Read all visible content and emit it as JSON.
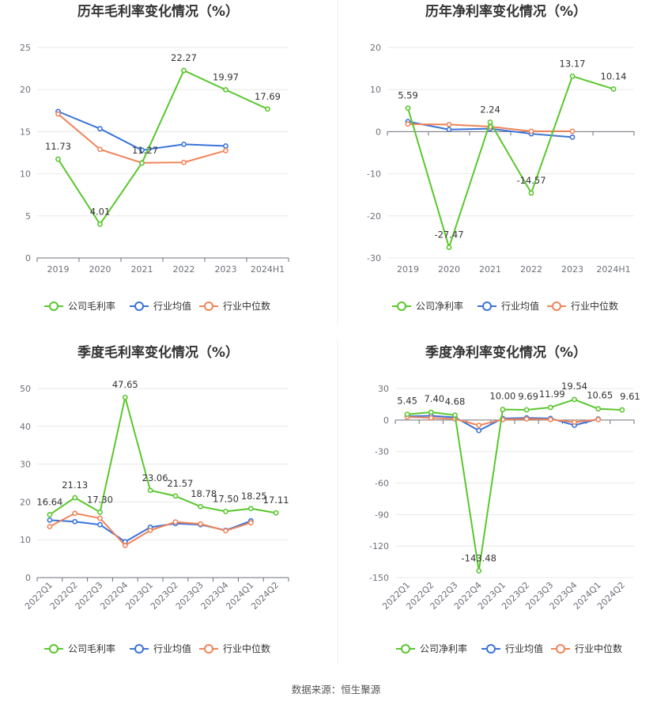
{
  "source_label": "数据来源：恒生聚源",
  "legend_industry_avg": "行业均值",
  "legend_industry_median": "行业中位数",
  "colors": {
    "company": "#5ac72d",
    "industry_avg": "#3b73d9",
    "industry_median": "#f0845a"
  },
  "chart_data": [
    {
      "type": "line",
      "title": "历年毛利率变化情况（%）",
      "categories": [
        "2019",
        "2020",
        "2021",
        "2022",
        "2023",
        "2024H1"
      ],
      "ylim": [
        0,
        25
      ],
      "yticks": [
        0,
        5,
        10,
        15,
        20,
        25
      ],
      "rotate_x": false,
      "series": [
        {
          "name": "公司毛利率",
          "key": "company",
          "values": [
            11.73,
            4.01,
            11.27,
            22.27,
            19.97,
            17.69
          ],
          "labels": [
            "11.73",
            "4.01",
            "11.27",
            "22.27",
            "19.97",
            "17.69"
          ]
        },
        {
          "name": "行业均值",
          "key": "industry_avg",
          "values": [
            17.4,
            15.35,
            12.8,
            13.5,
            13.3,
            null
          ]
        },
        {
          "name": "行业中位数",
          "key": "industry_median",
          "values": [
            17.1,
            12.9,
            11.3,
            11.35,
            12.75,
            null
          ]
        }
      ]
    },
    {
      "type": "line",
      "title": "历年净利率变化情况（%）",
      "categories": [
        "2019",
        "2020",
        "2021",
        "2022",
        "2023",
        "2024H1"
      ],
      "ylim": [
        -30,
        20
      ],
      "yticks": [
        -30,
        -20,
        -10,
        0,
        10,
        20
      ],
      "rotate_x": false,
      "series": [
        {
          "name": "公司净利率",
          "key": "company",
          "values": [
            5.59,
            -27.47,
            2.24,
            -14.57,
            13.17,
            10.14
          ],
          "labels": [
            "5.59",
            "-27.47",
            "2.24",
            "-14.57",
            "13.17",
            "10.14"
          ]
        },
        {
          "name": "行业均值",
          "key": "industry_avg",
          "values": [
            2.4,
            0.5,
            0.7,
            -0.5,
            -1.3,
            null
          ]
        },
        {
          "name": "行业中位数",
          "key": "industry_median",
          "values": [
            1.8,
            1.7,
            1.2,
            0.1,
            0.1,
            null
          ]
        }
      ]
    },
    {
      "type": "line",
      "title": "季度毛利率变化情况（%）",
      "categories": [
        "2022Q1",
        "2022Q2",
        "2022Q3",
        "2022Q4",
        "2023Q1",
        "2023Q2",
        "2023Q3",
        "2023Q4",
        "2024Q1",
        "2024Q2"
      ],
      "ylim": [
        0,
        50
      ],
      "yticks": [
        0,
        10,
        20,
        30,
        40,
        50
      ],
      "rotate_x": true,
      "series": [
        {
          "name": "公司毛利率",
          "key": "company",
          "values": [
            16.64,
            21.13,
            17.3,
            47.65,
            23.06,
            21.57,
            18.78,
            17.5,
            18.25,
            17.11
          ],
          "labels": [
            "16.64",
            "21.13",
            "17.30",
            "47.65",
            "23.06",
            "21.57",
            "18.78",
            "17.50",
            "18.25",
            "17.11"
          ]
        },
        {
          "name": "行业均值",
          "key": "industry_avg",
          "values": [
            15.2,
            14.8,
            14.0,
            9.5,
            13.3,
            14.3,
            14.0,
            12.5,
            15.0,
            null
          ]
        },
        {
          "name": "行业中位数",
          "key": "industry_median",
          "values": [
            13.5,
            17.0,
            15.7,
            8.5,
            12.5,
            14.7,
            14.2,
            12.4,
            14.5,
            null
          ]
        }
      ]
    },
    {
      "type": "line",
      "title": "季度净利率变化情况（%）",
      "categories": [
        "2022Q1",
        "2022Q2",
        "2022Q3",
        "2022Q4",
        "2023Q1",
        "2023Q2",
        "2023Q3",
        "2023Q4",
        "2024Q1",
        "2024Q2"
      ],
      "ylim": [
        -150,
        30
      ],
      "yticks": [
        -150,
        -120,
        -90,
        -60,
        -30,
        0,
        30
      ],
      "rotate_x": true,
      "series": [
        {
          "name": "公司净利率",
          "key": "company",
          "values": [
            5.45,
            7.4,
            4.68,
            -143.48,
            10.0,
            9.69,
            11.99,
            19.54,
            10.65,
            9.61
          ],
          "labels": [
            "5.45",
            "7.40",
            "4.68",
            "-143.48",
            "10.00",
            "9.69",
            "11.99",
            "19.54",
            "10.65",
            "9.61"
          ]
        },
        {
          "name": "行业均值",
          "key": "industry_avg",
          "values": [
            3.5,
            4.0,
            2.5,
            -10.0,
            1.5,
            2.0,
            1.5,
            -5.0,
            1.0,
            null
          ]
        },
        {
          "name": "行业中位数",
          "key": "industry_median",
          "values": [
            3.0,
            2.0,
            1.0,
            -5.0,
            0.5,
            1.0,
            0.5,
            -2.0,
            0.5,
            null
          ]
        }
      ]
    }
  ]
}
